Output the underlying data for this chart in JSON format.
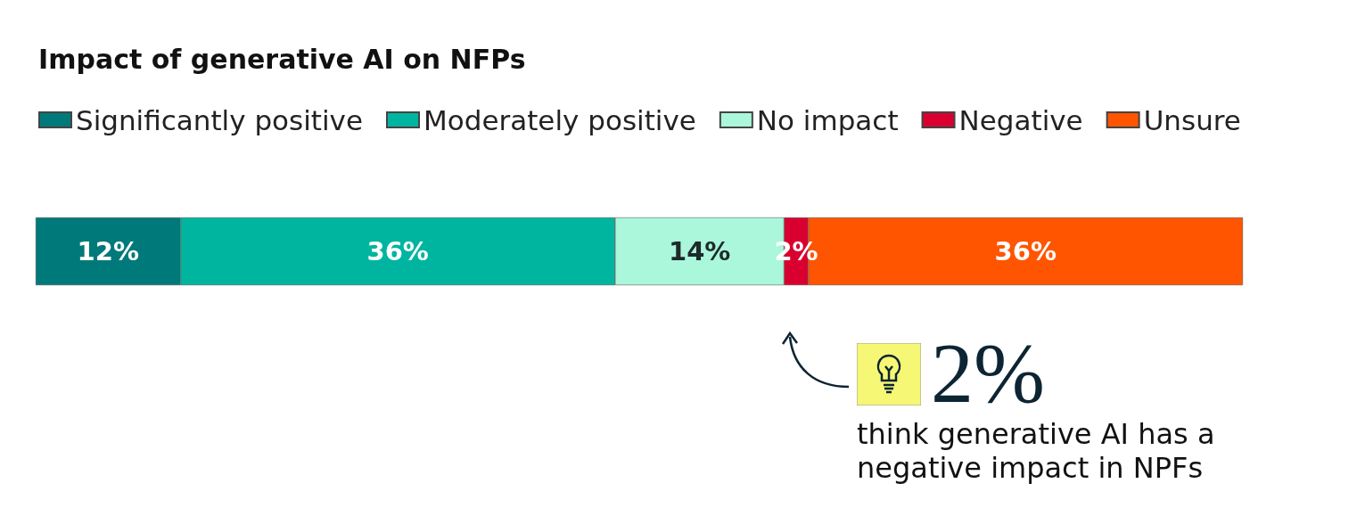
{
  "chart_data": {
    "type": "bar",
    "orientation": "horizontal",
    "stacked": true,
    "title": "Impact of generative AI on NFPs",
    "categories": [
      null
    ],
    "series": [
      {
        "name": "Significantly positive",
        "color": "#00797a",
        "values": [
          12
        ],
        "value_labels": [
          "12%"
        ]
      },
      {
        "name": "Moderately positive",
        "color": "#00b5a0",
        "values": [
          36
        ],
        "value_labels": [
          "36%"
        ]
      },
      {
        "name": "No impact",
        "color": "#aaf7dc",
        "values": [
          14
        ],
        "value_labels": [
          "14%"
        ]
      },
      {
        "name": "Negative",
        "color": "#d90030",
        "values": [
          2
        ],
        "value_labels": [
          "2%"
        ]
      },
      {
        "name": "Unsure",
        "color": "#ff5500",
        "values": [
          36
        ],
        "value_labels": [
          "36%"
        ]
      }
    ],
    "legend": "top left",
    "annotations": [
      "2%",
      "think generative AI has a negative impact in NPFs"
    ]
  }
}
